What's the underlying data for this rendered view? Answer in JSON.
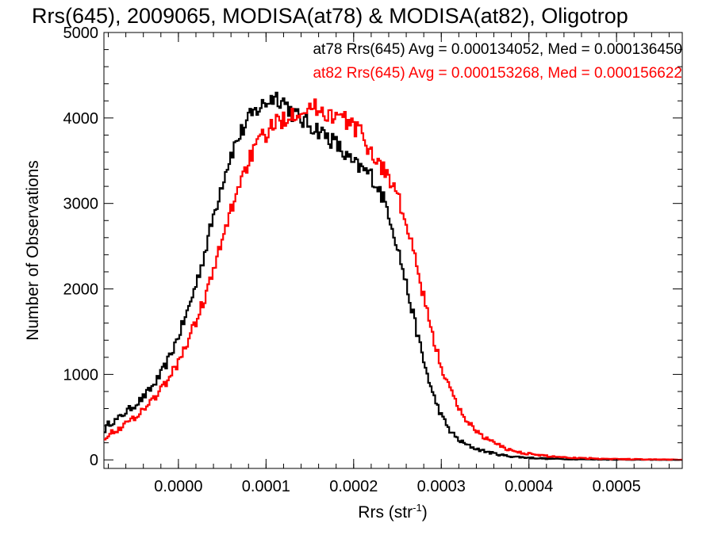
{
  "chart_data": {
    "type": "line",
    "title": "Rrs(645), 2009065, MODISA(at78) & MODISA(at82), Oligotrop",
    "xlabel": "Rrs (str",
    "xlabel_sup": "-1",
    "xlabel_close": ")",
    "ylabel": "Number of Observations",
    "xlim": [
      -8.5e-05,
      0.000575
    ],
    "ylim": [
      -100,
      5000
    ],
    "xticks": [
      0.0,
      0.0001,
      0.0002,
      0.0003,
      0.0004,
      0.0005
    ],
    "xtick_labels": [
      "0.0000",
      "0.0001",
      "0.0002",
      "0.0003",
      "0.0004",
      "0.0005"
    ],
    "yticks": [
      0,
      1000,
      2000,
      3000,
      4000,
      5000
    ],
    "ytick_labels": [
      "0",
      "1000",
      "2000",
      "3000",
      "4000",
      "5000"
    ],
    "legend_position": "top-right",
    "grid": false,
    "style": "step histogram",
    "series": [
      {
        "name": "at78 Rrs(645) Avg = 0.000134052, Med = 0.000136450",
        "color": "#000000",
        "points": [
          [
            -8.5e-05,
            330
          ],
          [
            -8e-05,
            420
          ],
          [
            -7e-05,
            470
          ],
          [
            -6e-05,
            560
          ],
          [
            -5e-05,
            640
          ],
          [
            -4e-05,
            730
          ],
          [
            -3e-05,
            850
          ],
          [
            -2e-05,
            1000
          ],
          [
            -1e-05,
            1200
          ],
          [
            0.0,
            1450
          ],
          [
            1e-05,
            1720
          ],
          [
            2e-05,
            2050
          ],
          [
            3e-05,
            2420
          ],
          [
            4e-05,
            2850
          ],
          [
            5e-05,
            3250
          ],
          [
            6e-05,
            3580
          ],
          [
            7e-05,
            3800
          ],
          [
            8e-05,
            3980
          ],
          [
            9e-05,
            4100
          ],
          [
            0.0001,
            4180
          ],
          [
            0.00011,
            4260
          ],
          [
            0.00012,
            4200
          ],
          [
            0.00013,
            4060
          ],
          [
            0.00014,
            3980
          ],
          [
            0.00015,
            3920
          ],
          [
            0.00016,
            3860
          ],
          [
            0.00017,
            3780
          ],
          [
            0.00018,
            3700
          ],
          [
            0.00019,
            3560
          ],
          [
            0.0002,
            3460
          ],
          [
            0.00021,
            3400
          ],
          [
            0.00022,
            3330
          ],
          [
            0.00023,
            3150
          ],
          [
            0.00024,
            2900
          ],
          [
            0.00025,
            2500
          ],
          [
            0.00026,
            2050
          ],
          [
            0.00027,
            1600
          ],
          [
            0.00028,
            1150
          ],
          [
            0.00029,
            780
          ],
          [
            0.0003,
            520
          ],
          [
            0.00031,
            340
          ],
          [
            0.00032,
            230
          ],
          [
            0.00033,
            170
          ],
          [
            0.00034,
            130
          ],
          [
            0.00035,
            100
          ],
          [
            0.00036,
            75
          ],
          [
            0.00037,
            55
          ],
          [
            0.00038,
            40
          ],
          [
            0.0004,
            25
          ],
          [
            0.00042,
            15
          ],
          [
            0.00045,
            8
          ],
          [
            0.0005,
            3
          ],
          [
            0.000575,
            0
          ]
        ]
      },
      {
        "name": "at82 Rrs(645) Avg = 0.000153268, Med = 0.000156622",
        "color": "#ff0000",
        "points": [
          [
            -8.5e-05,
            250
          ],
          [
            -8e-05,
            300
          ],
          [
            -7e-05,
            350
          ],
          [
            -6e-05,
            420
          ],
          [
            -5e-05,
            500
          ],
          [
            -4e-05,
            590
          ],
          [
            -3e-05,
            700
          ],
          [
            -2e-05,
            820
          ],
          [
            -1e-05,
            960
          ],
          [
            0.0,
            1150
          ],
          [
            1e-05,
            1370
          ],
          [
            2e-05,
            1620
          ],
          [
            3e-05,
            1900
          ],
          [
            4e-05,
            2200
          ],
          [
            5e-05,
            2560
          ],
          [
            6e-05,
            2920
          ],
          [
            7e-05,
            3250
          ],
          [
            8e-05,
            3500
          ],
          [
            9e-05,
            3680
          ],
          [
            0.0001,
            3820
          ],
          [
            0.00011,
            3920
          ],
          [
            0.00012,
            4000
          ],
          [
            0.00013,
            4060
          ],
          [
            0.00014,
            4100
          ],
          [
            0.00015,
            4120
          ],
          [
            0.00016,
            4110
          ],
          [
            0.00017,
            4050
          ],
          [
            0.00018,
            4020
          ],
          [
            0.00019,
            3980
          ],
          [
            0.0002,
            3900
          ],
          [
            0.00021,
            3800
          ],
          [
            0.00022,
            3600
          ],
          [
            0.00023,
            3450
          ],
          [
            0.00024,
            3320
          ],
          [
            0.00025,
            3100
          ],
          [
            0.00026,
            2750
          ],
          [
            0.00027,
            2350
          ],
          [
            0.00028,
            1900
          ],
          [
            0.00029,
            1450
          ],
          [
            0.0003,
            1100
          ],
          [
            0.00031,
            820
          ],
          [
            0.00032,
            600
          ],
          [
            0.00033,
            450
          ],
          [
            0.00034,
            340
          ],
          [
            0.00035,
            260
          ],
          [
            0.00036,
            200
          ],
          [
            0.00037,
            150
          ],
          [
            0.00038,
            110
          ],
          [
            0.0004,
            70
          ],
          [
            0.00042,
            45
          ],
          [
            0.00045,
            25
          ],
          [
            0.0005,
            10
          ],
          [
            0.000575,
            2
          ]
        ]
      }
    ]
  }
}
